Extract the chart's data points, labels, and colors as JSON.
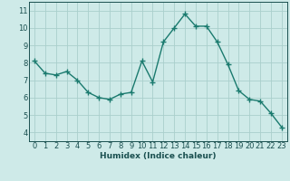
{
  "x": [
    0,
    1,
    2,
    3,
    4,
    5,
    6,
    7,
    8,
    9,
    10,
    11,
    12,
    13,
    14,
    15,
    16,
    17,
    18,
    19,
    20,
    21,
    22,
    23
  ],
  "y": [
    8.1,
    7.4,
    7.3,
    7.5,
    7.0,
    6.3,
    6.0,
    5.9,
    6.2,
    6.3,
    8.1,
    6.9,
    9.2,
    10.0,
    10.8,
    10.1,
    10.1,
    9.2,
    7.9,
    6.4,
    5.9,
    5.8,
    5.1,
    4.3
  ],
  "xlabel": "Humidex (Indice chaleur)",
  "xlim": [
    -0.5,
    23.5
  ],
  "ylim": [
    3.5,
    11.5
  ],
  "yticks": [
    4,
    5,
    6,
    7,
    8,
    9,
    10,
    11
  ],
  "xticks": [
    0,
    1,
    2,
    3,
    4,
    5,
    6,
    7,
    8,
    9,
    10,
    11,
    12,
    13,
    14,
    15,
    16,
    17,
    18,
    19,
    20,
    21,
    22,
    23
  ],
  "line_color": "#1a7a6e",
  "marker": "+",
  "marker_size": 4,
  "marker_edge_width": 1.0,
  "bg_color": "#ceeae8",
  "grid_color": "#aacfcc",
  "tick_color": "#1a5050",
  "label_color": "#1a5050",
  "line_width": 1.0,
  "xlabel_fontsize": 6.5,
  "tick_fontsize": 6.0
}
